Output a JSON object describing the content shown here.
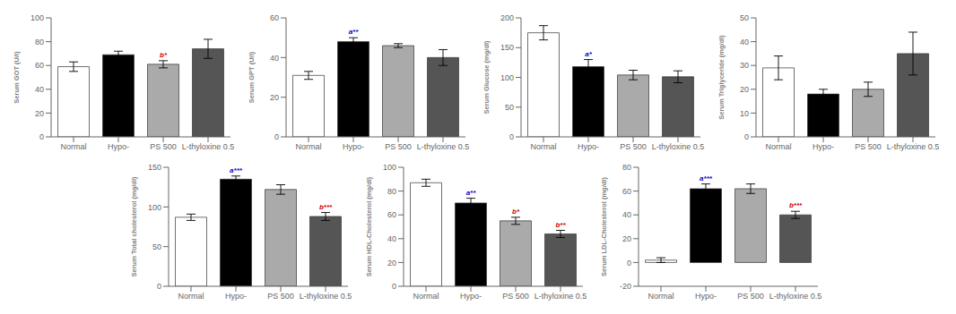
{
  "chart_data": [
    {
      "type": "bar",
      "ylabel": "Serum GOT (U/l)",
      "categories": [
        "Normal",
        "Hypo-",
        "PS 500",
        "L-thyloxine 0.5"
      ],
      "values": [
        59,
        69,
        61,
        74
      ],
      "errors": [
        4,
        3,
        3,
        8
      ],
      "annotations": [
        null,
        null,
        {
          "text": "b*",
          "color": "#cc0000"
        },
        null
      ],
      "colors": [
        "#ffffff",
        "#000000",
        "#aaaaaa",
        "#555555"
      ],
      "ylim": [
        0,
        100
      ],
      "yticks": [
        0,
        20,
        40,
        60,
        80,
        100
      ],
      "grid": false
    },
    {
      "type": "bar",
      "ylabel": "Serum GPT (U/l)",
      "categories": [
        "Normal",
        "Hypo-",
        "PS 500",
        "L-thyloxine 0.5"
      ],
      "values": [
        31,
        48,
        46,
        40
      ],
      "errors": [
        2,
        2,
        1,
        4
      ],
      "annotations": [
        null,
        {
          "text": "a**",
          "color": "#0000cc"
        },
        null,
        null
      ],
      "colors": [
        "#ffffff",
        "#000000",
        "#aaaaaa",
        "#555555"
      ],
      "ylim": [
        0,
        60
      ],
      "yticks": [
        0,
        20,
        40,
        60
      ],
      "grid": false
    },
    {
      "type": "bar",
      "ylabel": "Serum Glucose  (mg/dl)",
      "categories": [
        "Normal",
        "Hypo-",
        "PS 500",
        "L-thyloxine 0.5"
      ],
      "values": [
        175,
        118,
        104,
        101
      ],
      "errors": [
        12,
        12,
        8,
        10
      ],
      "annotations": [
        null,
        {
          "text": "a*",
          "color": "#0000cc"
        },
        null,
        null
      ],
      "colors": [
        "#ffffff",
        "#000000",
        "#aaaaaa",
        "#555555"
      ],
      "ylim": [
        0,
        200
      ],
      "yticks": [
        0,
        50,
        100,
        150,
        200
      ],
      "grid": false
    },
    {
      "type": "bar",
      "ylabel": "Serum Triglyceride  (mg/dl)",
      "categories": [
        "Normal",
        "Hypo-",
        "PS 500",
        "L-thyloxine 0.5"
      ],
      "values": [
        29,
        18,
        20,
        35
      ],
      "errors": [
        5,
        2,
        3,
        9
      ],
      "annotations": [
        null,
        null,
        null,
        null
      ],
      "colors": [
        "#ffffff",
        "#000000",
        "#aaaaaa",
        "#555555"
      ],
      "ylim": [
        0,
        50
      ],
      "yticks": [
        0,
        10,
        20,
        30,
        40,
        50
      ],
      "grid": false
    },
    {
      "type": "bar",
      "ylabel": "Serum Total cholesterol  (mg/dl)",
      "categories": [
        "Normal",
        "Hypo-",
        "PS 500",
        "L-thyloxine 0.5"
      ],
      "values": [
        87,
        135,
        122,
        88
      ],
      "errors": [
        4,
        4,
        6,
        5
      ],
      "annotations": [
        null,
        {
          "text": "a***",
          "color": "#0000cc"
        },
        null,
        {
          "text": "b***",
          "color": "#cc0000"
        }
      ],
      "colors": [
        "#ffffff",
        "#000000",
        "#aaaaaa",
        "#555555"
      ],
      "ylim": [
        0,
        150
      ],
      "yticks": [
        0,
        50,
        100,
        150
      ],
      "grid": false
    },
    {
      "type": "bar",
      "ylabel": "Serum HDL-Cholesterol  (mg/dl)",
      "categories": [
        "Normal",
        "Hypo-",
        "PS 500",
        "L-thyloxine 0.5"
      ],
      "values": [
        87,
        70,
        55,
        44
      ],
      "errors": [
        3,
        4,
        3,
        3
      ],
      "annotations": [
        null,
        {
          "text": "a**",
          "color": "#0000cc"
        },
        {
          "text": "b*",
          "color": "#cc0000"
        },
        {
          "text": "b**",
          "color": "#cc0000"
        }
      ],
      "colors": [
        "#ffffff",
        "#000000",
        "#aaaaaa",
        "#555555"
      ],
      "ylim": [
        0,
        100
      ],
      "yticks": [
        0,
        20,
        40,
        60,
        80,
        100
      ],
      "grid": false
    },
    {
      "type": "bar",
      "ylabel": "Serum LDL-Cholesterol  (mg/dl)",
      "categories": [
        "Normal",
        "Hypo-",
        "PS 500",
        "L-thyloxine 0.5"
      ],
      "values": [
        2,
        62,
        62,
        40
      ],
      "errors": [
        2,
        4,
        4,
        3
      ],
      "annotations": [
        null,
        {
          "text": "a***",
          "color": "#0000cc"
        },
        null,
        {
          "text": "b***",
          "color": "#cc0000"
        }
      ],
      "colors": [
        "#ffffff",
        "#000000",
        "#aaaaaa",
        "#555555"
      ],
      "ylim": [
        -20,
        80
      ],
      "yticks": [
        -20,
        0,
        20,
        40,
        60,
        80
      ],
      "grid": false
    }
  ]
}
